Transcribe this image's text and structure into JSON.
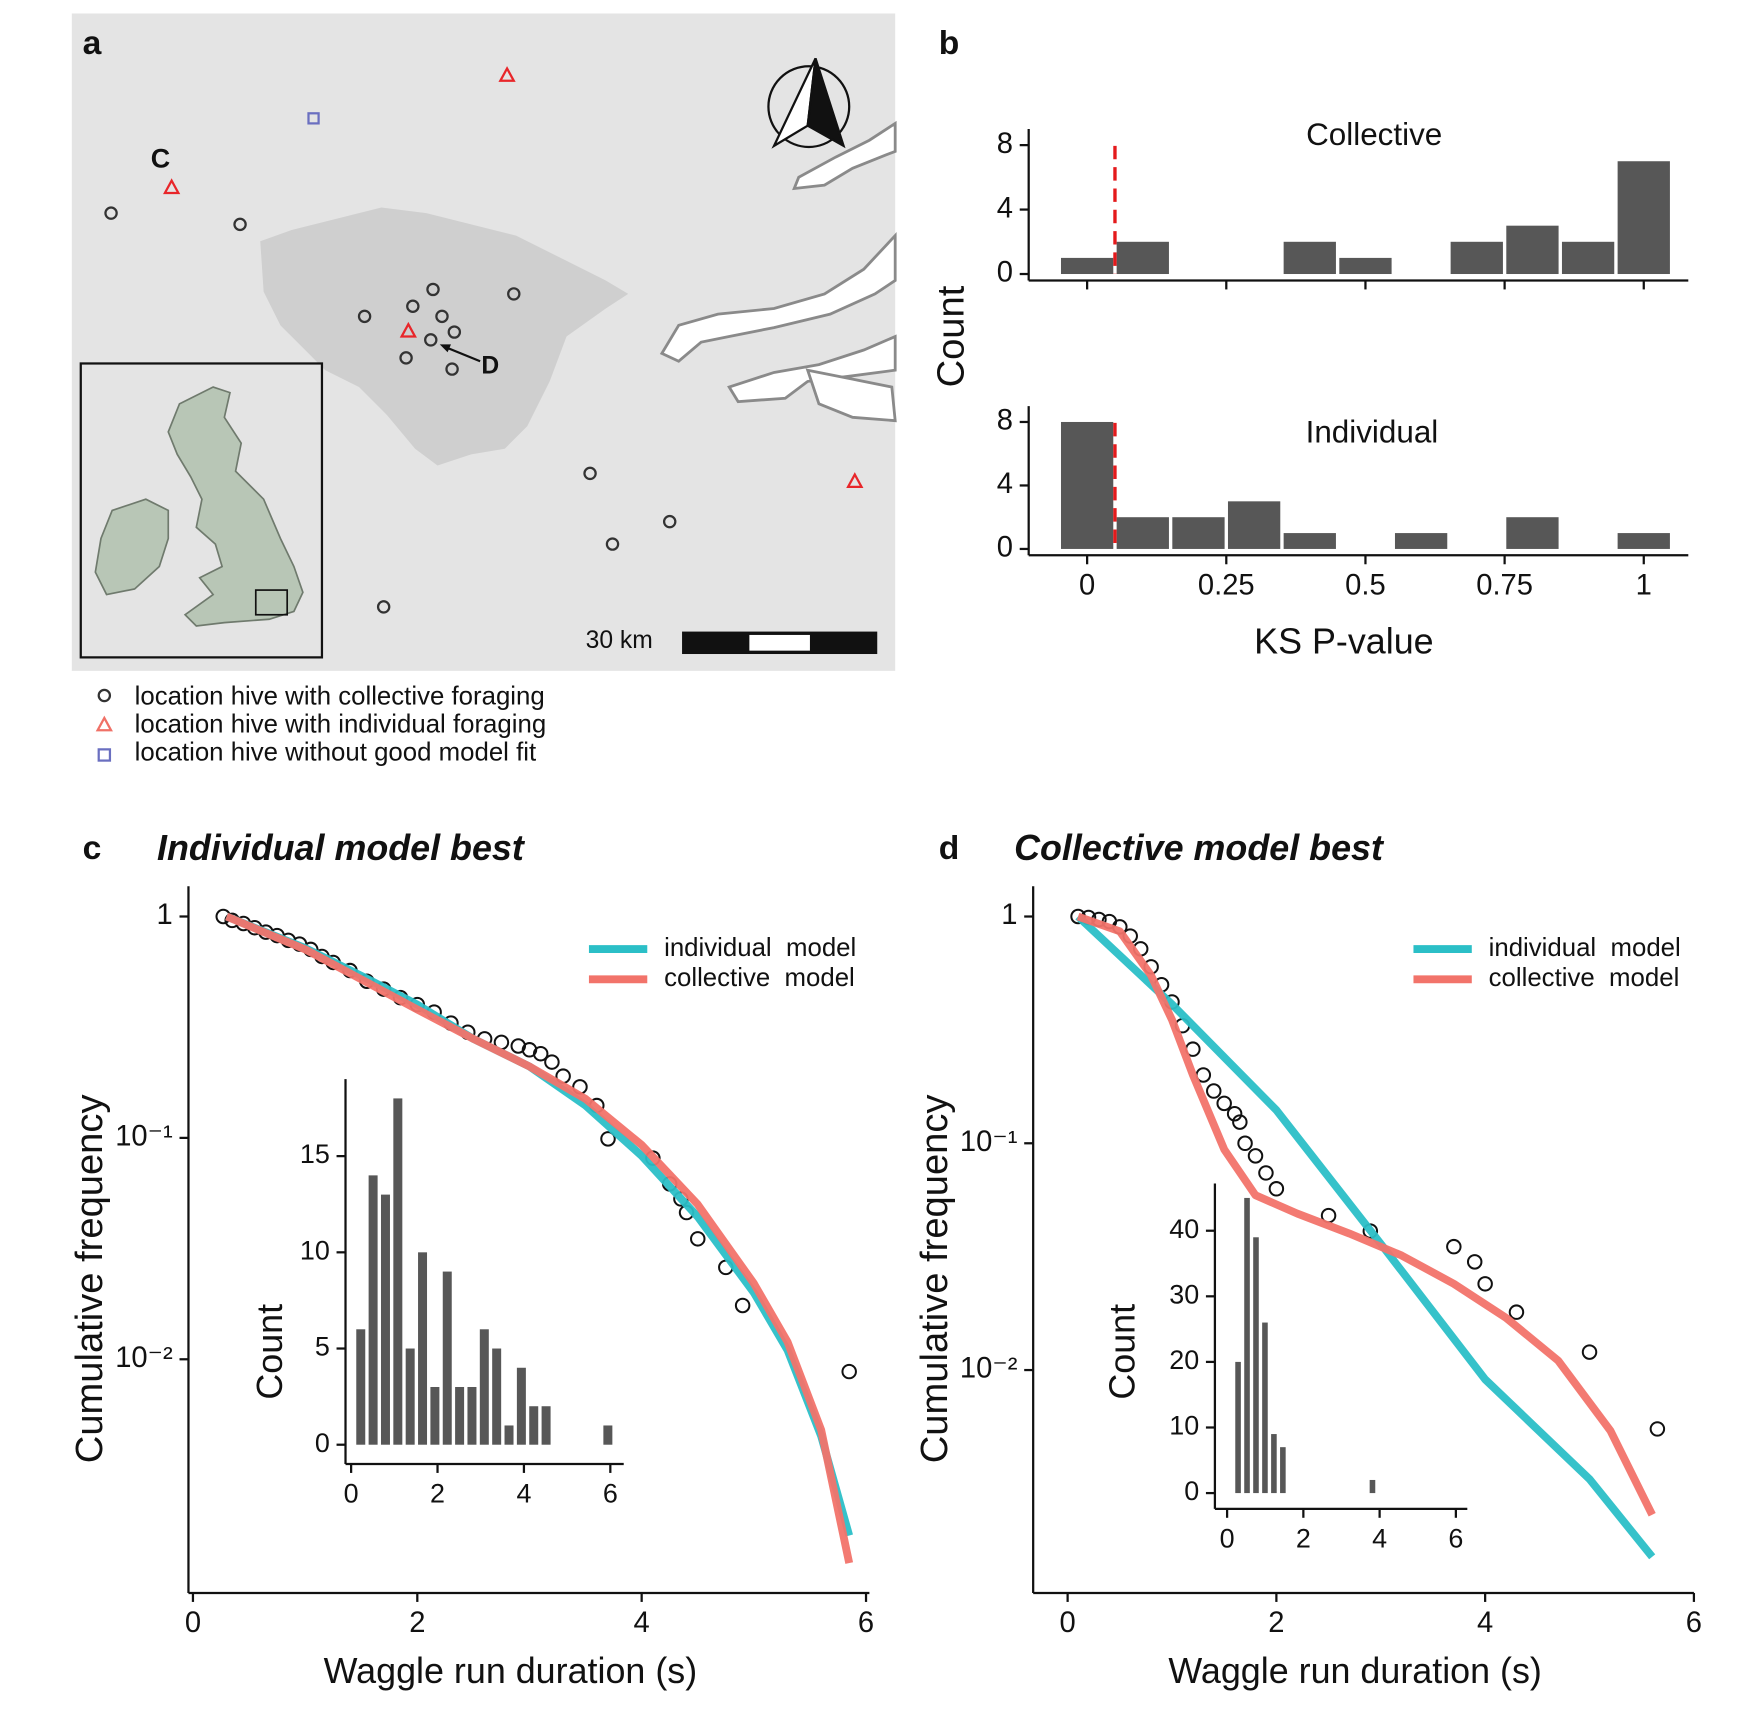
{
  "panel_labels": [
    "a",
    "b",
    "c",
    "d"
  ],
  "map": {
    "label_c": "C",
    "label_d": "D",
    "scale": "30 km",
    "legend": [
      "location hive with collective foraging",
      "location hive with individual foraging",
      "location hive without good model fit"
    ]
  },
  "chart_data": [
    {
      "type": "histogram",
      "title": "Collective",
      "ylabel": "Count",
      "color": "#575757",
      "bins": [
        -0.05,
        0.05,
        0.15,
        0.25,
        0.35,
        0.45,
        0.55,
        0.65,
        0.75,
        0.85,
        0.95,
        1.05
      ],
      "counts": [
        1,
        2,
        0,
        0,
        2,
        1,
        0,
        2,
        3,
        2,
        7
      ],
      "xlim": [
        -0.105,
        1.08
      ],
      "xticks": [
        0,
        0.25,
        0.5,
        0.75,
        1
      ],
      "ylim": [
        -0.4,
        9
      ],
      "yticks": [
        0,
        4,
        8
      ],
      "vline": 0.05,
      "vline_color": "#e41a1c"
    },
    {
      "type": "histogram",
      "title": "Individual",
      "xlabel": "KS P-value",
      "color": "#575757",
      "bins": [
        -0.05,
        0.05,
        0.15,
        0.25,
        0.35,
        0.45,
        0.55,
        0.65,
        0.75,
        0.85,
        0.95,
        1.05
      ],
      "counts": [
        8,
        2,
        2,
        3,
        1,
        0,
        1,
        0,
        2,
        0,
        1
      ],
      "xlim": [
        -0.105,
        1.08
      ],
      "xticks": [
        0,
        0.25,
        0.5,
        0.75,
        1
      ],
      "ylim": [
        -0.4,
        9
      ],
      "yticks": [
        0,
        4,
        8
      ],
      "vline": 0.05,
      "vline_color": "#e41a1c"
    },
    {
      "type": "line",
      "title": "Individual model best",
      "xlabel": "Waggle run duration (s)",
      "ylabel": "Cumulative frequency",
      "log_y": true,
      "legend": "top-right",
      "xlim": [
        -0.04,
        6.03
      ],
      "xticks": [
        0,
        2,
        4,
        6
      ],
      "ylim": [
        0.00088,
        1.37
      ],
      "yticks": [
        1,
        {
          "value": 0.1,
          "label": "10⁻¹"
        },
        {
          "value": 0.01,
          "label": "10⁻²"
        }
      ],
      "scatter": {
        "x": [
          0.27,
          0.35,
          0.45,
          0.55,
          0.65,
          0.75,
          0.85,
          0.95,
          1.05,
          1.15,
          1.25,
          1.4,
          1.55,
          1.7,
          1.85,
          2.0,
          2.15,
          2.3,
          2.45,
          2.6,
          2.75,
          2.9,
          3.0,
          3.1,
          3.2,
          3.3,
          3.45,
          3.6,
          3.7,
          4.1,
          4.25,
          4.35,
          4.4,
          4.5,
          4.75,
          4.9,
          5.85
        ],
        "values": [
          1,
          0.96,
          0.93,
          0.89,
          0.85,
          0.82,
          0.78,
          0.75,
          0.71,
          0.66,
          0.62,
          0.57,
          0.51,
          0.47,
          0.43,
          0.4,
          0.37,
          0.33,
          0.3,
          0.28,
          0.27,
          0.26,
          0.25,
          0.24,
          0.22,
          0.19,
          0.17,
          0.14,
          0.099,
          0.081,
          0.062,
          0.053,
          0.046,
          0.035,
          0.026,
          0.0175,
          0.0088
        ]
      },
      "series": [
        {
          "name": "individual  model",
          "color": "#2bbfc7",
          "x": [
            0.3,
            1,
            1.5,
            2,
            2.5,
            3,
            3.5,
            4,
            4.5,
            5,
            5.3,
            5.6,
            5.85
          ],
          "values": [
            1,
            0.72,
            0.54,
            0.4,
            0.28,
            0.21,
            0.14,
            0.083,
            0.044,
            0.02,
            0.011,
            0.0045,
            0.0016
          ]
        },
        {
          "name": "collective  model",
          "color": "#f2736a",
          "x": [
            0.3,
            1,
            1.5,
            2,
            2.5,
            3,
            3.5,
            4,
            4.5,
            5,
            5.3,
            5.6,
            5.85
          ],
          "values": [
            1,
            0.71,
            0.52,
            0.38,
            0.28,
            0.21,
            0.15,
            0.093,
            0.05,
            0.022,
            0.012,
            0.0048,
            0.0012
          ]
        }
      ]
    },
    {
      "type": "histogram",
      "ylabel": "Count",
      "color": "#575757",
      "bins": [
        0.08,
        0.366,
        0.652,
        0.938,
        1.224,
        1.51,
        1.796,
        2.082,
        2.368,
        2.654,
        2.94,
        3.226,
        3.512,
        3.798,
        4.084,
        4.37,
        4.656,
        4.942,
        5.228,
        5.514,
        5.8,
        6.086
      ],
      "counts": [
        6,
        14,
        13,
        18,
        5,
        10,
        3,
        9,
        3,
        3,
        6,
        5,
        1,
        4,
        2,
        2,
        0,
        0,
        0,
        0,
        1
      ],
      "xlim": [
        -0.13,
        6.31
      ],
      "xticks": [
        0,
        2,
        4,
        6
      ],
      "ylim": [
        -1,
        19
      ],
      "yticks": [
        0,
        5,
        10,
        15
      ]
    },
    {
      "type": "line",
      "title": "Collective model best",
      "xlabel": "Waggle run duration (s)",
      "ylabel": "Cumulative frequency",
      "log_y": true,
      "legend": "top-right",
      "xlim": [
        -0.33,
        6.0
      ],
      "xticks": [
        0,
        2,
        4,
        6
      ],
      "ylim": [
        0.00104,
        1.36
      ],
      "yticks": [
        1,
        {
          "value": 0.1,
          "label": "10⁻¹"
        },
        {
          "value": 0.01,
          "label": "10⁻²"
        }
      ],
      "scatter": {
        "x": [
          0.1,
          0.2,
          0.3,
          0.4,
          0.5,
          0.6,
          0.7,
          0.8,
          0.9,
          1.0,
          1.1,
          1.2,
          1.3,
          1.4,
          1.5,
          1.6,
          1.65,
          1.7,
          1.8,
          1.9,
          2.0,
          2.5,
          2.9,
          3.7,
          3.9,
          4.0,
          4.3,
          5.0,
          5.65
        ],
        "values": [
          1,
          0.99,
          0.97,
          0.95,
          0.9,
          0.82,
          0.72,
          0.6,
          0.5,
          0.42,
          0.33,
          0.26,
          0.2,
          0.17,
          0.15,
          0.135,
          0.124,
          0.1,
          0.088,
          0.074,
          0.063,
          0.048,
          0.041,
          0.035,
          0.03,
          0.024,
          0.018,
          0.012,
          0.0055
        ]
      },
      "series": [
        {
          "name": "individual  model",
          "color": "#2bbfc7",
          "x": [
            0.1,
            1,
            2,
            3,
            4,
            5,
            5.6
          ],
          "values": [
            1,
            0.41,
            0.14,
            0.036,
            0.0091,
            0.0033,
            0.0015
          ]
        },
        {
          "name": "collective  model",
          "color": "#f2736a",
          "x": [
            0.1,
            0.5,
            0.8,
            1,
            1.2,
            1.5,
            1.8,
            2.2,
            2.7,
            3.2,
            3.7,
            4.2,
            4.7,
            5.2,
            5.6
          ],
          "values": [
            1,
            0.86,
            0.55,
            0.35,
            0.2,
            0.094,
            0.059,
            0.049,
            0.04,
            0.032,
            0.024,
            0.017,
            0.011,
            0.0054,
            0.0023
          ]
        }
      ]
    },
    {
      "type": "histogram",
      "ylabel": "Count",
      "color": "#575757",
      "bins": [
        0.17,
        0.405,
        0.64,
        0.875,
        1.11,
        1.345,
        1.58,
        1.815,
        2.05,
        2.285,
        2.52,
        2.755,
        2.99,
        3.225,
        3.46,
        3.695,
        3.93,
        4.165,
        4.4,
        4.635,
        4.87,
        5.105,
        5.34,
        5.575,
        5.81
      ],
      "counts": [
        20,
        45,
        39,
        26,
        9,
        7,
        0,
        0,
        0,
        0,
        0,
        0,
        0,
        0,
        0,
        2,
        0,
        0,
        0,
        0,
        0,
        0,
        0,
        0
      ],
      "xlim": [
        -0.32,
        6.3
      ],
      "xticks": [
        0,
        2,
        4,
        6
      ],
      "ylim": [
        -2.4,
        47.2
      ],
      "yticks": [
        0,
        10,
        20,
        30,
        40
      ]
    }
  ]
}
